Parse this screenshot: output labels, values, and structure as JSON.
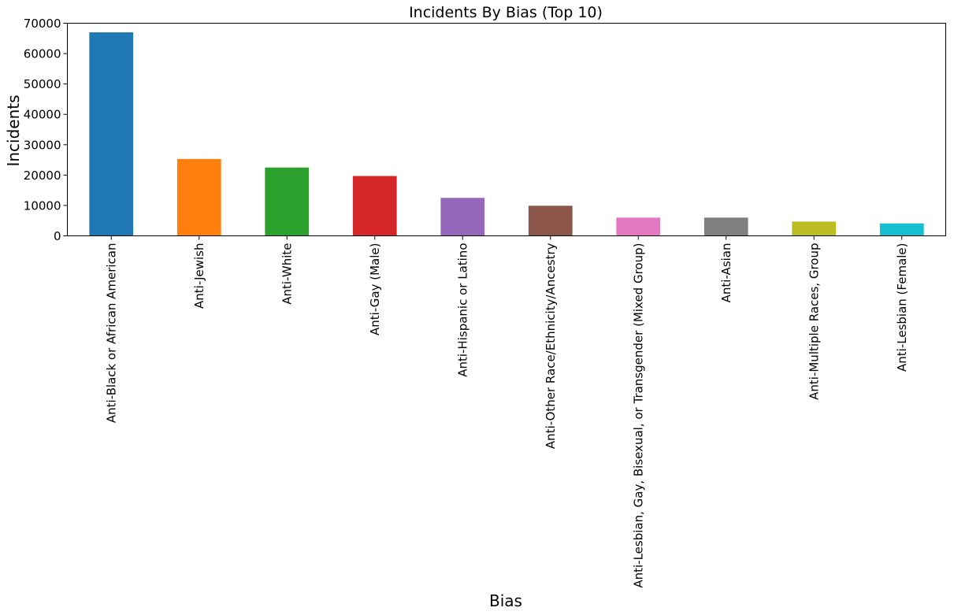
{
  "chart_data": {
    "type": "bar",
    "title": "Incidents By Bias (Top 10)",
    "xlabel": "Bias",
    "ylabel": "Incidents",
    "categories": [
      "Anti-Black or African American",
      "Anti-Jewish",
      "Anti-White",
      "Anti-Gay (Male)",
      "Anti-Hispanic or Latino",
      "Anti-Other Race/Ethnicity/Ancestry",
      "Anti-Lesbian, Gay, Bisexual, or Transgender (Mixed Group)",
      "Anti-Asian",
      "Anti-Multiple Races, Group",
      "Anti-Lesbian (Female)"
    ],
    "values": [
      67000,
      25300,
      22500,
      19700,
      12500,
      9900,
      6000,
      6000,
      4700,
      4100
    ],
    "colors": [
      "#1f77b4",
      "#ff7f0e",
      "#2ca02c",
      "#d62728",
      "#9467bd",
      "#8c564b",
      "#e377c2",
      "#7f7f7f",
      "#bcbd22",
      "#17becf"
    ],
    "ylim": [
      0,
      70000
    ],
    "yticks": [
      "0",
      "10000",
      "20000",
      "30000",
      "40000",
      "50000",
      "60000",
      "70000"
    ],
    "grid": false,
    "legend": false
  }
}
